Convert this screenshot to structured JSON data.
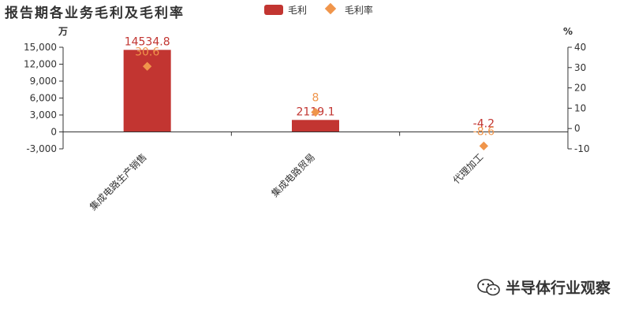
{
  "chart_data": {
    "type": "bar",
    "title": "报告期各业务毛利及毛利率",
    "categories": [
      "集成电路生产销售",
      "集成电路贸易",
      "代理加工"
    ],
    "series": [
      {
        "name": "毛利",
        "chart": "bar",
        "axis": "left",
        "color": "#c23531",
        "values": [
          14534.8,
          2119.1,
          -4.2
        ],
        "labels": [
          "14534.8",
          "2119.1",
          "-4.2"
        ]
      },
      {
        "name": "毛利率",
        "chart": "scatter",
        "axis": "right",
        "color": "#f0954b",
        "values": [
          30.6,
          8,
          -8.6
        ],
        "labels": [
          "30.6",
          "8",
          "-8.6"
        ]
      }
    ],
    "y_left": {
      "unit": "万",
      "ylim": [
        -3000,
        15000
      ],
      "ticks": [
        -3000,
        0,
        3000,
        6000,
        9000,
        12000,
        15000
      ],
      "tick_labels": [
        "-3,000",
        "0",
        "3,000",
        "6,000",
        "9,000",
        "12,000",
        "15,000"
      ]
    },
    "y_right": {
      "unit": "%",
      "ylim": [
        -10,
        40
      ],
      "ticks": [
        -10,
        0,
        10,
        20,
        30,
        40
      ],
      "tick_labels": [
        "-10",
        "0",
        "10",
        "20",
        "30",
        "40"
      ]
    },
    "legend_position": "top-center",
    "grid": false
  },
  "watermark": {
    "text": "半导体行业观察",
    "icon": "wechat-icon"
  }
}
